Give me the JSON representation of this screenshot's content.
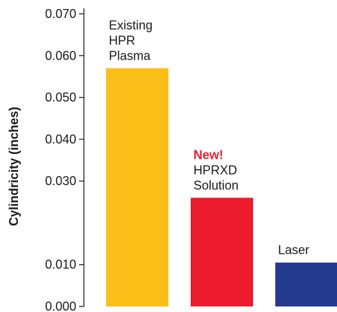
{
  "chart_data": {
    "type": "bar",
    "title": "",
    "xlabel": "",
    "ylabel": "Cylindricity (inches)",
    "ylim": [
      0,
      0.07
    ],
    "yticks": [
      "0.000",
      "0.010",
      "0.030",
      "0.040",
      "0.050",
      "0.060",
      "0.070"
    ],
    "ytick_values": [
      0.0,
      0.01,
      0.03,
      0.04,
      0.05,
      0.06,
      0.07
    ],
    "grid": false,
    "legend": "none",
    "categories": [
      {
        "lines": [
          "Existing",
          "HPR",
          "Plasma"
        ],
        "accent": ""
      },
      {
        "lines": [
          "HPRXD",
          "Solution"
        ],
        "accent": "New!"
      },
      {
        "lines": [
          "Laser"
        ],
        "accent": ""
      }
    ],
    "values": [
      0.057,
      0.026,
      0.0105
    ],
    "colors": [
      "#fcbf1a",
      "#ec1b2e",
      "#233a8e"
    ],
    "accent_color": "#e8202f"
  }
}
